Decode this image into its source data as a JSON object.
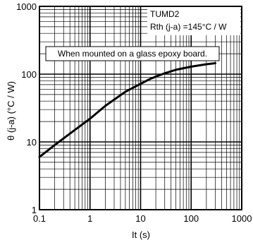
{
  "chart_data": {
    "type": "line",
    "xlabel": "It (s)",
    "ylabel": "θ (j-a) (°C / W)",
    "xscale": "log",
    "yscale": "log",
    "xlim": [
      0.1,
      1000
    ],
    "ylim": [
      1,
      1000
    ],
    "grid": true,
    "x_ticks": [
      {
        "value": 0.1,
        "label": "0.1"
      },
      {
        "value": 1,
        "label": "1"
      },
      {
        "value": 10,
        "label": "10"
      },
      {
        "value": 100,
        "label": "100"
      },
      {
        "value": 1000,
        "label": "1000"
      }
    ],
    "y_ticks": [
      {
        "value": 1,
        "label": "1"
      },
      {
        "value": 10,
        "label": "10"
      },
      {
        "value": 100,
        "label": "100"
      },
      {
        "value": 1000,
        "label": "1000"
      }
    ],
    "series": [
      {
        "x": [
          0.1,
          0.2,
          0.5,
          1,
          2,
          5,
          10,
          15,
          20,
          30,
          50,
          100,
          200,
          300
        ],
        "y": [
          6,
          9,
          15,
          22,
          34,
          55,
          72,
          84,
          92,
          103,
          116,
          129,
          140,
          145
        ]
      }
    ],
    "annotations": {
      "device": "TUMD2",
      "rth": "Rth (j-a) =145°C / W",
      "condition": "When mounted on a glass epoxy board."
    },
    "line_color": "#000000"
  }
}
